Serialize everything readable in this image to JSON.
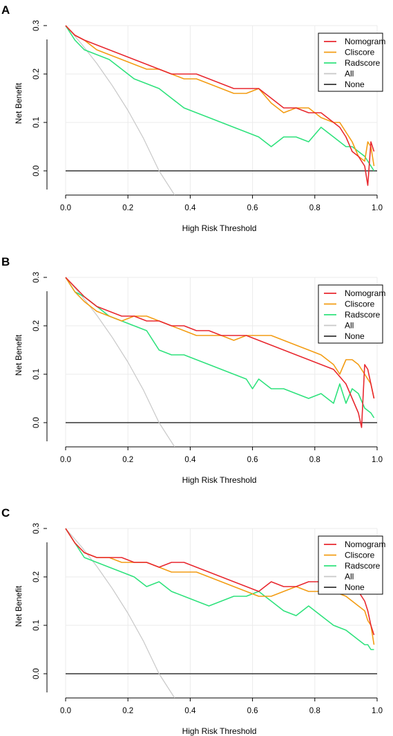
{
  "chart_data": [
    {
      "type": "line",
      "panel": "A",
      "xlabel": "High Risk Threshold",
      "ylabel": "Net Benefit",
      "xlim": [
        0,
        1
      ],
      "ylim": [
        -0.05,
        0.3
      ],
      "xticks": [
        "0.0",
        "0.2",
        "0.4",
        "0.6",
        "0.8",
        "1.0"
      ],
      "yticks": [
        "0.0",
        "0.1",
        "0.2",
        "0.3"
      ],
      "grid": true,
      "legend_position": "top-right",
      "series": [
        {
          "name": "Nomogram",
          "color": "#e8272e",
          "x": [
            0,
            0.03,
            0.06,
            0.1,
            0.14,
            0.18,
            0.22,
            0.26,
            0.3,
            0.34,
            0.38,
            0.42,
            0.46,
            0.5,
            0.54,
            0.58,
            0.62,
            0.66,
            0.7,
            0.74,
            0.78,
            0.82,
            0.86,
            0.88,
            0.9,
            0.92,
            0.94,
            0.96,
            0.97,
            0.98,
            0.99
          ],
          "values": [
            0.3,
            0.28,
            0.27,
            0.26,
            0.25,
            0.24,
            0.23,
            0.22,
            0.21,
            0.2,
            0.2,
            0.2,
            0.19,
            0.18,
            0.17,
            0.17,
            0.17,
            0.15,
            0.13,
            0.13,
            0.12,
            0.12,
            0.1,
            0.09,
            0.07,
            0.04,
            0.03,
            0.01,
            -0.03,
            0.06,
            0.04
          ]
        },
        {
          "name": "Cliscore",
          "color": "#f39c12",
          "x": [
            0,
            0.03,
            0.06,
            0.1,
            0.14,
            0.18,
            0.22,
            0.26,
            0.3,
            0.34,
            0.38,
            0.42,
            0.46,
            0.5,
            0.54,
            0.58,
            0.62,
            0.66,
            0.7,
            0.74,
            0.78,
            0.82,
            0.86,
            0.88,
            0.9,
            0.92,
            0.94,
            0.96,
            0.97,
            0.98,
            0.99
          ],
          "values": [
            0.3,
            0.28,
            0.27,
            0.25,
            0.24,
            0.23,
            0.22,
            0.21,
            0.21,
            0.2,
            0.19,
            0.19,
            0.18,
            0.17,
            0.16,
            0.16,
            0.17,
            0.14,
            0.12,
            0.13,
            0.13,
            0.11,
            0.1,
            0.1,
            0.08,
            0.06,
            0.03,
            0.02,
            0.06,
            0.05,
            0.01
          ]
        },
        {
          "name": "Radscore",
          "color": "#2ee27c",
          "x": [
            0,
            0.03,
            0.06,
            0.1,
            0.14,
            0.18,
            0.22,
            0.26,
            0.3,
            0.34,
            0.38,
            0.42,
            0.46,
            0.5,
            0.54,
            0.58,
            0.62,
            0.66,
            0.7,
            0.74,
            0.78,
            0.82,
            0.86,
            0.88,
            0.9,
            0.92,
            0.94,
            0.96,
            0.97,
            0.98,
            0.99
          ],
          "values": [
            0.3,
            0.27,
            0.25,
            0.24,
            0.23,
            0.21,
            0.19,
            0.18,
            0.17,
            0.15,
            0.13,
            0.12,
            0.11,
            0.1,
            0.09,
            0.08,
            0.07,
            0.05,
            0.07,
            0.07,
            0.06,
            0.09,
            0.07,
            0.06,
            0.05,
            0.05,
            0.04,
            0.03,
            0.02,
            0.01,
            0.0
          ]
        },
        {
          "name": "All",
          "color": "#c8c8c8",
          "x": [
            0,
            0.05,
            0.1,
            0.15,
            0.2,
            0.25,
            0.3,
            0.35
          ],
          "values": [
            0.3,
            0.263,
            0.222,
            0.176,
            0.125,
            0.067,
            0.0,
            -0.077
          ]
        },
        {
          "name": "None",
          "color": "#333333",
          "x": [
            0,
            1
          ],
          "values": [
            0,
            0
          ]
        }
      ]
    },
    {
      "type": "line",
      "panel": "B",
      "xlabel": "High Risk Threshold",
      "ylabel": "Net Benefit",
      "xlim": [
        0,
        1
      ],
      "ylim": [
        -0.05,
        0.3
      ],
      "xticks": [
        "0.0",
        "0.2",
        "0.4",
        "0.6",
        "0.8",
        "1.0"
      ],
      "yticks": [
        "0.0",
        "0.1",
        "0.2",
        "0.3"
      ],
      "grid": true,
      "legend_position": "top-right",
      "series": [
        {
          "name": "Nomogram",
          "color": "#e8272e",
          "x": [
            0,
            0.03,
            0.06,
            0.1,
            0.14,
            0.18,
            0.22,
            0.26,
            0.3,
            0.34,
            0.38,
            0.42,
            0.46,
            0.5,
            0.54,
            0.58,
            0.62,
            0.66,
            0.7,
            0.74,
            0.78,
            0.82,
            0.86,
            0.9,
            0.92,
            0.94,
            0.95,
            0.96,
            0.97,
            0.98,
            0.99
          ],
          "values": [
            0.3,
            0.28,
            0.26,
            0.24,
            0.23,
            0.22,
            0.22,
            0.21,
            0.21,
            0.2,
            0.2,
            0.19,
            0.19,
            0.18,
            0.18,
            0.18,
            0.17,
            0.16,
            0.15,
            0.14,
            0.13,
            0.12,
            0.11,
            0.08,
            0.05,
            0.02,
            -0.01,
            0.12,
            0.11,
            0.08,
            0.05
          ]
        },
        {
          "name": "Cliscore",
          "color": "#f39c12",
          "x": [
            0,
            0.03,
            0.06,
            0.1,
            0.14,
            0.18,
            0.22,
            0.26,
            0.3,
            0.34,
            0.38,
            0.42,
            0.46,
            0.5,
            0.54,
            0.58,
            0.62,
            0.66,
            0.7,
            0.74,
            0.78,
            0.82,
            0.86,
            0.88,
            0.9,
            0.92,
            0.94,
            0.96,
            0.98,
            0.99
          ],
          "values": [
            0.3,
            0.27,
            0.25,
            0.23,
            0.22,
            0.21,
            0.22,
            0.22,
            0.21,
            0.2,
            0.19,
            0.18,
            0.18,
            0.18,
            0.17,
            0.18,
            0.18,
            0.18,
            0.17,
            0.16,
            0.15,
            0.14,
            0.12,
            0.1,
            0.13,
            0.13,
            0.12,
            0.1,
            0.08,
            0.05
          ]
        },
        {
          "name": "Radscore",
          "color": "#2ee27c",
          "x": [
            0,
            0.03,
            0.06,
            0.1,
            0.14,
            0.18,
            0.22,
            0.26,
            0.3,
            0.34,
            0.38,
            0.42,
            0.46,
            0.5,
            0.54,
            0.58,
            0.6,
            0.62,
            0.66,
            0.7,
            0.74,
            0.78,
            0.82,
            0.86,
            0.88,
            0.9,
            0.92,
            0.94,
            0.96,
            0.98,
            0.99
          ],
          "values": [
            0.3,
            0.27,
            0.26,
            0.24,
            0.22,
            0.21,
            0.2,
            0.19,
            0.15,
            0.14,
            0.14,
            0.13,
            0.12,
            0.11,
            0.1,
            0.09,
            0.07,
            0.09,
            0.07,
            0.07,
            0.06,
            0.05,
            0.06,
            0.04,
            0.08,
            0.04,
            0.07,
            0.06,
            0.03,
            0.02,
            0.01
          ]
        },
        {
          "name": "All",
          "color": "#c8c8c8",
          "x": [
            0,
            0.05,
            0.1,
            0.15,
            0.2,
            0.25,
            0.3,
            0.35
          ],
          "values": [
            0.3,
            0.263,
            0.222,
            0.176,
            0.125,
            0.067,
            0.0,
            -0.077
          ]
        },
        {
          "name": "None",
          "color": "#333333",
          "x": [
            0,
            1
          ],
          "values": [
            0,
            0
          ]
        }
      ]
    },
    {
      "type": "line",
      "panel": "C",
      "xlabel": "High Risk Threshold",
      "ylabel": "Net Benefit",
      "xlim": [
        0,
        1
      ],
      "ylim": [
        -0.05,
        0.3
      ],
      "xticks": [
        "0.0",
        "0.2",
        "0.4",
        "0.6",
        "0.8",
        "1.0"
      ],
      "yticks": [
        "0.0",
        "0.1",
        "0.2",
        "0.3"
      ],
      "grid": true,
      "legend_position": "top-right",
      "series": [
        {
          "name": "Nomogram",
          "color": "#e8272e",
          "x": [
            0,
            0.03,
            0.06,
            0.1,
            0.14,
            0.18,
            0.22,
            0.26,
            0.3,
            0.34,
            0.38,
            0.42,
            0.46,
            0.5,
            0.54,
            0.58,
            0.62,
            0.66,
            0.7,
            0.74,
            0.78,
            0.82,
            0.86,
            0.9,
            0.94,
            0.96,
            0.97,
            0.98,
            0.99
          ],
          "values": [
            0.3,
            0.27,
            0.25,
            0.24,
            0.24,
            0.24,
            0.23,
            0.23,
            0.22,
            0.23,
            0.23,
            0.22,
            0.21,
            0.2,
            0.19,
            0.18,
            0.17,
            0.19,
            0.18,
            0.18,
            0.19,
            0.19,
            0.18,
            0.18,
            0.17,
            0.15,
            0.13,
            0.1,
            0.08
          ]
        },
        {
          "name": "Cliscore",
          "color": "#f39c12",
          "x": [
            0,
            0.03,
            0.06,
            0.1,
            0.14,
            0.18,
            0.22,
            0.26,
            0.3,
            0.34,
            0.38,
            0.42,
            0.46,
            0.5,
            0.54,
            0.58,
            0.62,
            0.66,
            0.7,
            0.74,
            0.78,
            0.82,
            0.86,
            0.9,
            0.94,
            0.96,
            0.97,
            0.98,
            0.99
          ],
          "values": [
            0.3,
            0.27,
            0.25,
            0.24,
            0.24,
            0.23,
            0.23,
            0.23,
            0.22,
            0.21,
            0.21,
            0.21,
            0.2,
            0.19,
            0.18,
            0.17,
            0.16,
            0.16,
            0.17,
            0.18,
            0.17,
            0.17,
            0.17,
            0.16,
            0.14,
            0.13,
            0.11,
            0.1,
            0.06
          ]
        },
        {
          "name": "Radscore",
          "color": "#2ee27c",
          "x": [
            0,
            0.03,
            0.06,
            0.1,
            0.14,
            0.18,
            0.22,
            0.26,
            0.3,
            0.34,
            0.38,
            0.42,
            0.46,
            0.5,
            0.54,
            0.58,
            0.62,
            0.66,
            0.7,
            0.74,
            0.78,
            0.82,
            0.86,
            0.9,
            0.94,
            0.96,
            0.97,
            0.98,
            0.99
          ],
          "values": [
            0.3,
            0.27,
            0.24,
            0.23,
            0.22,
            0.21,
            0.2,
            0.18,
            0.19,
            0.17,
            0.16,
            0.15,
            0.14,
            0.15,
            0.16,
            0.16,
            0.17,
            0.15,
            0.13,
            0.12,
            0.14,
            0.12,
            0.1,
            0.09,
            0.07,
            0.06,
            0.06,
            0.05,
            0.05
          ]
        },
        {
          "name": "All",
          "color": "#c8c8c8",
          "x": [
            0,
            0.05,
            0.1,
            0.15,
            0.2,
            0.25,
            0.3,
            0.35
          ],
          "values": [
            0.3,
            0.263,
            0.222,
            0.176,
            0.125,
            0.067,
            0.0,
            -0.077
          ]
        },
        {
          "name": "None",
          "color": "#333333",
          "x": [
            0,
            1
          ],
          "values": [
            0,
            0
          ]
        }
      ]
    }
  ]
}
